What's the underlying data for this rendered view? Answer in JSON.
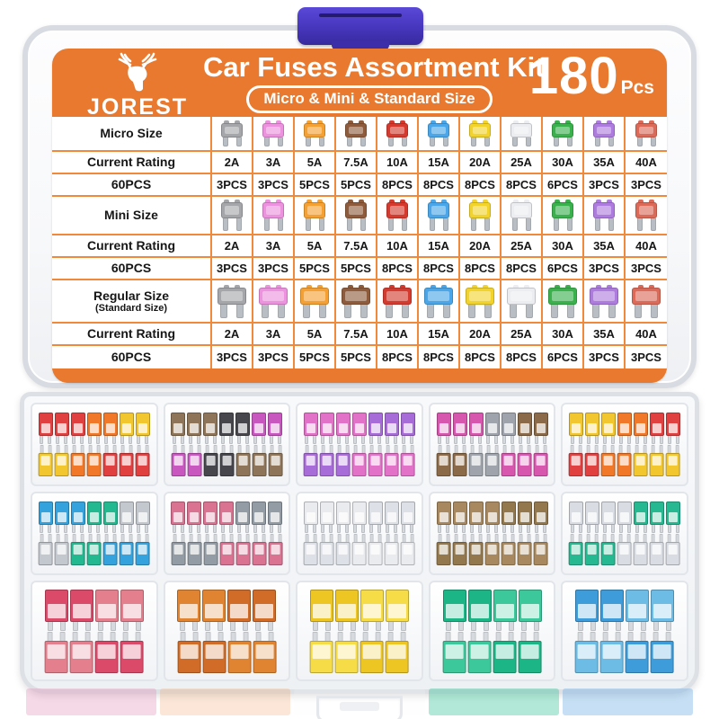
{
  "header": {
    "brand": "JOREST",
    "title": "Car Fuses Assortment Kit",
    "badge": "Micro & Mini & Standard Size",
    "count": "180",
    "count_unit": "Pcs"
  },
  "colors": {
    "label_orange": "#E8792E",
    "grid_orange": "#F1893B",
    "clasp_blue": "#4636BC",
    "leg_gray": "#B9BDC4",
    "text_dark": "#161616"
  },
  "table": {
    "ratings": [
      "2A",
      "3A",
      "5A",
      "7.5A",
      "10A",
      "15A",
      "20A",
      "25A",
      "30A",
      "35A",
      "40A"
    ],
    "pcs": [
      "3PCS",
      "3PCS",
      "5PCS",
      "5PCS",
      "8PCS",
      "8PCS",
      "8PCS",
      "8PCS",
      "6PCS",
      "3PCS",
      "3PCS"
    ],
    "fuse_colors": [
      "#A5A6AA",
      "#EC92DE",
      "#F5A033",
      "#8E5C3C",
      "#D43A2E",
      "#4AA6E8",
      "#F2D32C",
      "#ECEDF1",
      "#3BB14E",
      "#AE7CDE",
      "#DC6A58"
    ],
    "sections": [
      {
        "label": "Micro Size",
        "sublabel": "",
        "size": "micro",
        "rating_label": "Current Rating",
        "total_label": "60PCS"
      },
      {
        "label": "Mini Size",
        "sublabel": "",
        "size": "mini",
        "rating_label": "Current Rating",
        "total_label": "60PCS"
      },
      {
        "label": "Regular Size",
        "sublabel": "(Standard Size)",
        "size": "regular",
        "rating_label": "Current Rating",
        "total_label": "60PCS"
      }
    ]
  },
  "tray": {
    "rows": [
      {
        "size": "small",
        "per_row": 7,
        "compartments": [
          {
            "name": "red-orange-yellow-minis",
            "colors": [
              "#E04040",
              "#F07828",
              "#F2C62E"
            ]
          },
          {
            "name": "taupe-black-magenta-minis",
            "colors": [
              "#8E7458",
              "#46464C",
              "#C858C0"
            ]
          },
          {
            "name": "pink-violet-fuses",
            "colors": [
              "#E272C8",
              "#A86CD8"
            ]
          },
          {
            "name": "magenta-silver-bronze-minis",
            "colors": [
              "#D857AE",
              "#9FA4AC",
              "#8A6A48"
            ]
          },
          {
            "name": "yellow-orange-red-minis",
            "colors": [
              "#F2C62E",
              "#F07828",
              "#E04040"
            ]
          }
        ]
      },
      {
        "size": "small",
        "per_row": 7,
        "compartments": [
          {
            "name": "blue-teal-silver-minis",
            "colors": [
              "#34A2DC",
              "#22B890",
              "#C3C7CE"
            ]
          },
          {
            "name": "rose-gray-minis",
            "colors": [
              "#DA7292",
              "#939BA4"
            ]
          },
          {
            "name": "clear-minis",
            "colors": [
              "#E9EBEF",
              "#DDE0E6"
            ]
          },
          {
            "name": "bronze-minis",
            "colors": [
              "#A8885E",
              "#93784E"
            ]
          },
          {
            "name": "silver-teal-minis",
            "colors": [
              "#D9DDE3",
              "#26B890"
            ]
          }
        ]
      },
      {
        "size": "large",
        "per_row": 4,
        "compartments": [
          {
            "name": "rose-red-standards",
            "colors": [
              "#DC4A6A",
              "#E4808E"
            ]
          },
          {
            "name": "orange-standards",
            "colors": [
              "#E08432",
              "#D06C28"
            ]
          },
          {
            "name": "yellow-standards",
            "colors": [
              "#EEC624",
              "#F6DC46"
            ]
          },
          {
            "name": "green-standards",
            "colors": [
              "#1CB686",
              "#3CC89A"
            ]
          },
          {
            "name": "blue-standards",
            "colors": [
              "#3E9CDA",
              "#6CBCE6"
            ]
          }
        ]
      }
    ],
    "reflections": [
      "rgba(225,130,175,0.30)",
      "rgba(240,165,110,0.28)",
      "rgba(250,250,250,0.15)",
      "rgba(50,195,150,0.38)",
      "rgba(105,170,225,0.38)"
    ]
  }
}
